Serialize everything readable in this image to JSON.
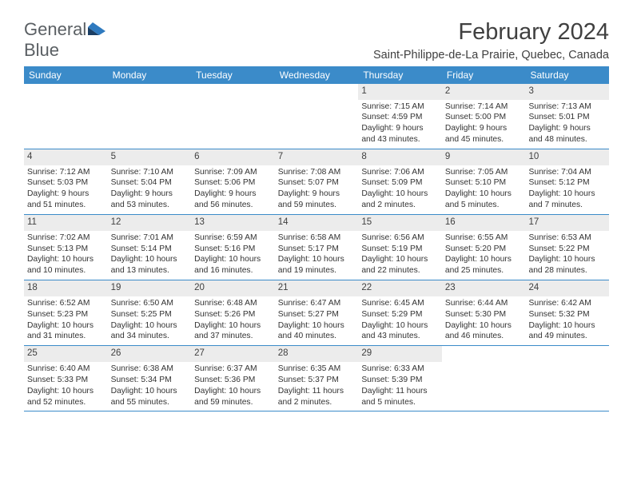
{
  "logo": {
    "word1": "General",
    "word2": "Blue",
    "text_color": "#5a5f63",
    "accent_color": "#2f7abf",
    "mark_dark": "#1b3e63",
    "mark_light": "#2f7abf"
  },
  "title": "February 2024",
  "location": "Saint-Philippe-de-La Prairie, Quebec, Canada",
  "colors": {
    "header_bg": "#3b8bc9",
    "header_text": "#ffffff",
    "daynum_bg": "#ececec",
    "border": "#3b8bc9",
    "page_bg": "#ffffff",
    "text": "#333333"
  },
  "weekdays": [
    "Sunday",
    "Monday",
    "Tuesday",
    "Wednesday",
    "Thursday",
    "Friday",
    "Saturday"
  ],
  "weeks": [
    [
      {
        "n": "",
        "sunrise": "",
        "sunset": "",
        "daylight": ""
      },
      {
        "n": "",
        "sunrise": "",
        "sunset": "",
        "daylight": ""
      },
      {
        "n": "",
        "sunrise": "",
        "sunset": "",
        "daylight": ""
      },
      {
        "n": "",
        "sunrise": "",
        "sunset": "",
        "daylight": ""
      },
      {
        "n": "1",
        "sunrise": "Sunrise: 7:15 AM",
        "sunset": "Sunset: 4:59 PM",
        "daylight": "Daylight: 9 hours and 43 minutes."
      },
      {
        "n": "2",
        "sunrise": "Sunrise: 7:14 AM",
        "sunset": "Sunset: 5:00 PM",
        "daylight": "Daylight: 9 hours and 45 minutes."
      },
      {
        "n": "3",
        "sunrise": "Sunrise: 7:13 AM",
        "sunset": "Sunset: 5:01 PM",
        "daylight": "Daylight: 9 hours and 48 minutes."
      }
    ],
    [
      {
        "n": "4",
        "sunrise": "Sunrise: 7:12 AM",
        "sunset": "Sunset: 5:03 PM",
        "daylight": "Daylight: 9 hours and 51 minutes."
      },
      {
        "n": "5",
        "sunrise": "Sunrise: 7:10 AM",
        "sunset": "Sunset: 5:04 PM",
        "daylight": "Daylight: 9 hours and 53 minutes."
      },
      {
        "n": "6",
        "sunrise": "Sunrise: 7:09 AM",
        "sunset": "Sunset: 5:06 PM",
        "daylight": "Daylight: 9 hours and 56 minutes."
      },
      {
        "n": "7",
        "sunrise": "Sunrise: 7:08 AM",
        "sunset": "Sunset: 5:07 PM",
        "daylight": "Daylight: 9 hours and 59 minutes."
      },
      {
        "n": "8",
        "sunrise": "Sunrise: 7:06 AM",
        "sunset": "Sunset: 5:09 PM",
        "daylight": "Daylight: 10 hours and 2 minutes."
      },
      {
        "n": "9",
        "sunrise": "Sunrise: 7:05 AM",
        "sunset": "Sunset: 5:10 PM",
        "daylight": "Daylight: 10 hours and 5 minutes."
      },
      {
        "n": "10",
        "sunrise": "Sunrise: 7:04 AM",
        "sunset": "Sunset: 5:12 PM",
        "daylight": "Daylight: 10 hours and 7 minutes."
      }
    ],
    [
      {
        "n": "11",
        "sunrise": "Sunrise: 7:02 AM",
        "sunset": "Sunset: 5:13 PM",
        "daylight": "Daylight: 10 hours and 10 minutes."
      },
      {
        "n": "12",
        "sunrise": "Sunrise: 7:01 AM",
        "sunset": "Sunset: 5:14 PM",
        "daylight": "Daylight: 10 hours and 13 minutes."
      },
      {
        "n": "13",
        "sunrise": "Sunrise: 6:59 AM",
        "sunset": "Sunset: 5:16 PM",
        "daylight": "Daylight: 10 hours and 16 minutes."
      },
      {
        "n": "14",
        "sunrise": "Sunrise: 6:58 AM",
        "sunset": "Sunset: 5:17 PM",
        "daylight": "Daylight: 10 hours and 19 minutes."
      },
      {
        "n": "15",
        "sunrise": "Sunrise: 6:56 AM",
        "sunset": "Sunset: 5:19 PM",
        "daylight": "Daylight: 10 hours and 22 minutes."
      },
      {
        "n": "16",
        "sunrise": "Sunrise: 6:55 AM",
        "sunset": "Sunset: 5:20 PM",
        "daylight": "Daylight: 10 hours and 25 minutes."
      },
      {
        "n": "17",
        "sunrise": "Sunrise: 6:53 AM",
        "sunset": "Sunset: 5:22 PM",
        "daylight": "Daylight: 10 hours and 28 minutes."
      }
    ],
    [
      {
        "n": "18",
        "sunrise": "Sunrise: 6:52 AM",
        "sunset": "Sunset: 5:23 PM",
        "daylight": "Daylight: 10 hours and 31 minutes."
      },
      {
        "n": "19",
        "sunrise": "Sunrise: 6:50 AM",
        "sunset": "Sunset: 5:25 PM",
        "daylight": "Daylight: 10 hours and 34 minutes."
      },
      {
        "n": "20",
        "sunrise": "Sunrise: 6:48 AM",
        "sunset": "Sunset: 5:26 PM",
        "daylight": "Daylight: 10 hours and 37 minutes."
      },
      {
        "n": "21",
        "sunrise": "Sunrise: 6:47 AM",
        "sunset": "Sunset: 5:27 PM",
        "daylight": "Daylight: 10 hours and 40 minutes."
      },
      {
        "n": "22",
        "sunrise": "Sunrise: 6:45 AM",
        "sunset": "Sunset: 5:29 PM",
        "daylight": "Daylight: 10 hours and 43 minutes."
      },
      {
        "n": "23",
        "sunrise": "Sunrise: 6:44 AM",
        "sunset": "Sunset: 5:30 PM",
        "daylight": "Daylight: 10 hours and 46 minutes."
      },
      {
        "n": "24",
        "sunrise": "Sunrise: 6:42 AM",
        "sunset": "Sunset: 5:32 PM",
        "daylight": "Daylight: 10 hours and 49 minutes."
      }
    ],
    [
      {
        "n": "25",
        "sunrise": "Sunrise: 6:40 AM",
        "sunset": "Sunset: 5:33 PM",
        "daylight": "Daylight: 10 hours and 52 minutes."
      },
      {
        "n": "26",
        "sunrise": "Sunrise: 6:38 AM",
        "sunset": "Sunset: 5:34 PM",
        "daylight": "Daylight: 10 hours and 55 minutes."
      },
      {
        "n": "27",
        "sunrise": "Sunrise: 6:37 AM",
        "sunset": "Sunset: 5:36 PM",
        "daylight": "Daylight: 10 hours and 59 minutes."
      },
      {
        "n": "28",
        "sunrise": "Sunrise: 6:35 AM",
        "sunset": "Sunset: 5:37 PM",
        "daylight": "Daylight: 11 hours and 2 minutes."
      },
      {
        "n": "29",
        "sunrise": "Sunrise: 6:33 AM",
        "sunset": "Sunset: 5:39 PM",
        "daylight": "Daylight: 11 hours and 5 minutes."
      },
      {
        "n": "",
        "sunrise": "",
        "sunset": "",
        "daylight": ""
      },
      {
        "n": "",
        "sunrise": "",
        "sunset": "",
        "daylight": ""
      }
    ]
  ]
}
